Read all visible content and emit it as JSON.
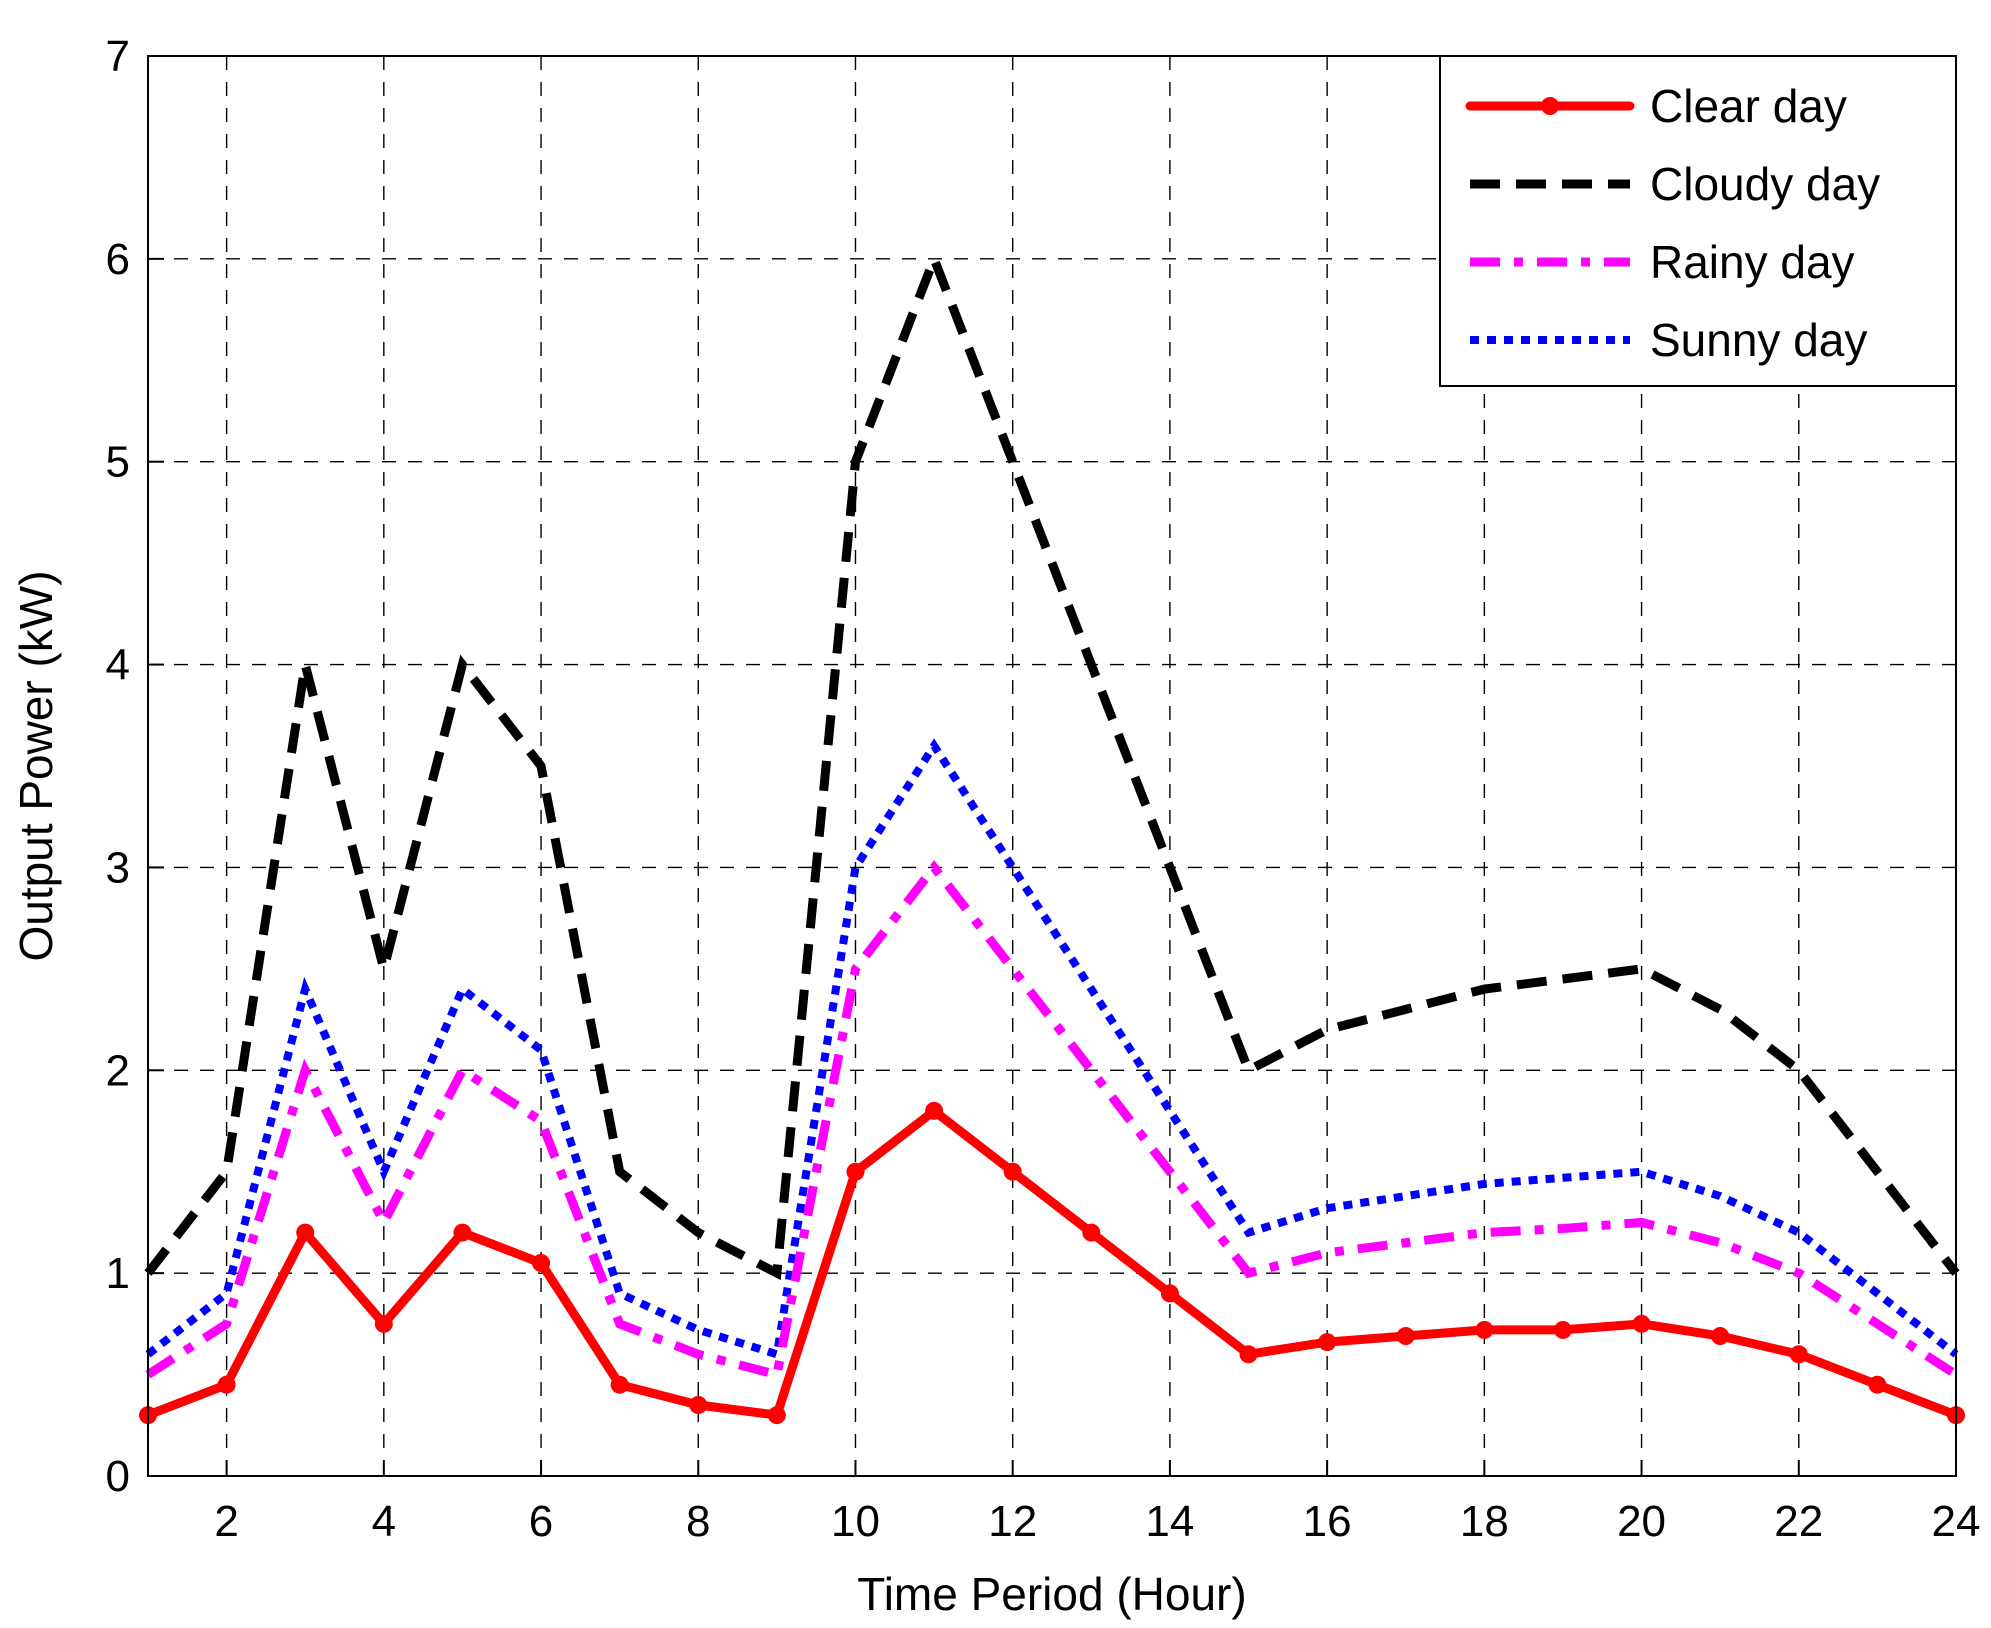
{
  "chart_data": {
    "type": "line",
    "title": "",
    "xlabel": "Time Period (Hour)",
    "ylabel": "Output Power (kW)",
    "xlim": [
      1,
      24
    ],
    "ylim": [
      0,
      7
    ],
    "xticks": [
      2,
      4,
      6,
      8,
      10,
      12,
      14,
      16,
      18,
      20,
      22,
      24
    ],
    "yticks": [
      0,
      1,
      2,
      3,
      4,
      5,
      6,
      7
    ],
    "grid": true,
    "legend_position": "top-right",
    "x": [
      1,
      2,
      3,
      4,
      5,
      6,
      7,
      8,
      9,
      10,
      11,
      12,
      13,
      14,
      15,
      16,
      17,
      18,
      19,
      20,
      21,
      22,
      23,
      24
    ],
    "series": [
      {
        "name": "Clear day",
        "color": "#ff0000",
        "style": "solid-with-markers",
        "values": [
          0.3,
          0.45,
          1.2,
          0.75,
          1.2,
          1.05,
          0.45,
          0.35,
          0.3,
          1.5,
          1.8,
          1.5,
          1.2,
          0.9,
          0.6,
          0.66,
          0.69,
          0.72,
          0.72,
          0.75,
          0.69,
          0.6,
          0.45,
          0.3
        ]
      },
      {
        "name": "Cloudy day",
        "color": "#000000",
        "style": "dashed",
        "values": [
          1.0,
          1.5,
          4.0,
          2.5,
          4.0,
          3.5,
          1.5,
          1.2,
          1.0,
          5.0,
          6.0,
          5.0,
          4.0,
          3.0,
          2.0,
          2.2,
          2.3,
          2.4,
          2.45,
          2.5,
          2.3,
          2.0,
          1.5,
          1.0
        ]
      },
      {
        "name": "Rainy day",
        "color": "#ff00ff",
        "style": "dash-dot",
        "values": [
          0.5,
          0.75,
          2.0,
          1.25,
          2.0,
          1.75,
          0.75,
          0.6,
          0.5,
          2.5,
          3.0,
          2.5,
          2.0,
          1.5,
          1.0,
          1.1,
          1.15,
          1.2,
          1.22,
          1.25,
          1.15,
          1.0,
          0.75,
          0.5
        ]
      },
      {
        "name": "Sunny day",
        "color": "#0000ff",
        "style": "dotted",
        "values": [
          0.6,
          0.9,
          2.4,
          1.5,
          2.4,
          2.1,
          0.9,
          0.72,
          0.6,
          3.0,
          3.6,
          3.0,
          2.4,
          1.8,
          1.2,
          1.32,
          1.38,
          1.44,
          1.47,
          1.5,
          1.38,
          1.2,
          0.9,
          0.6
        ]
      }
    ]
  }
}
